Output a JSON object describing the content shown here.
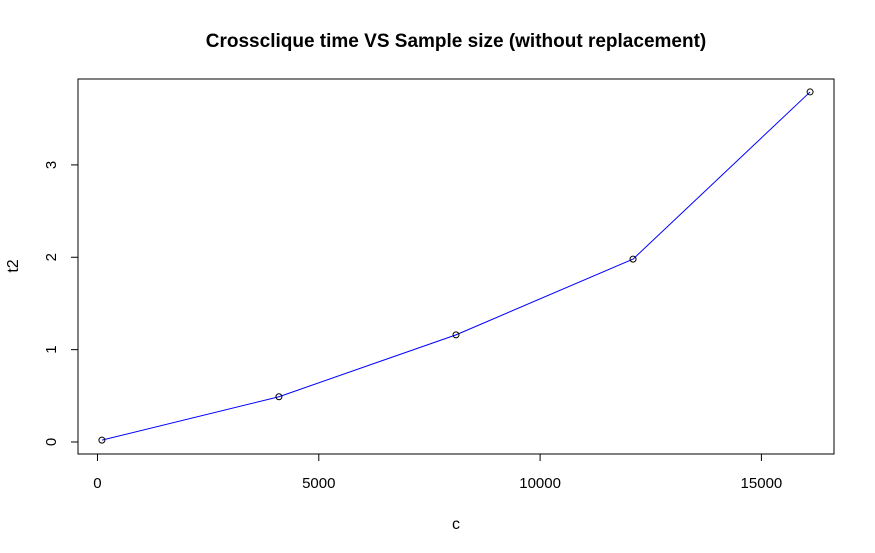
{
  "chart_data": {
    "type": "line",
    "title": "Crossclique time VS Sample size (without replacement)",
    "xlabel": "c",
    "ylabel": "t2",
    "x": [
      100,
      4100,
      8100,
      12100,
      16100
    ],
    "series": [
      {
        "name": "",
        "values": [
          0.02,
          0.49,
          1.16,
          1.98,
          3.79
        ],
        "color": "#0000ff",
        "marker": "open-circle",
        "marker_color": "#000000"
      }
    ],
    "xlim": [
      -440,
      16640
    ],
    "ylim": [
      -0.13,
      3.93
    ],
    "xticks": [
      0,
      5000,
      10000,
      15000
    ],
    "yticks": [
      0,
      1,
      2,
      3
    ],
    "grid": false,
    "legend": "none"
  }
}
